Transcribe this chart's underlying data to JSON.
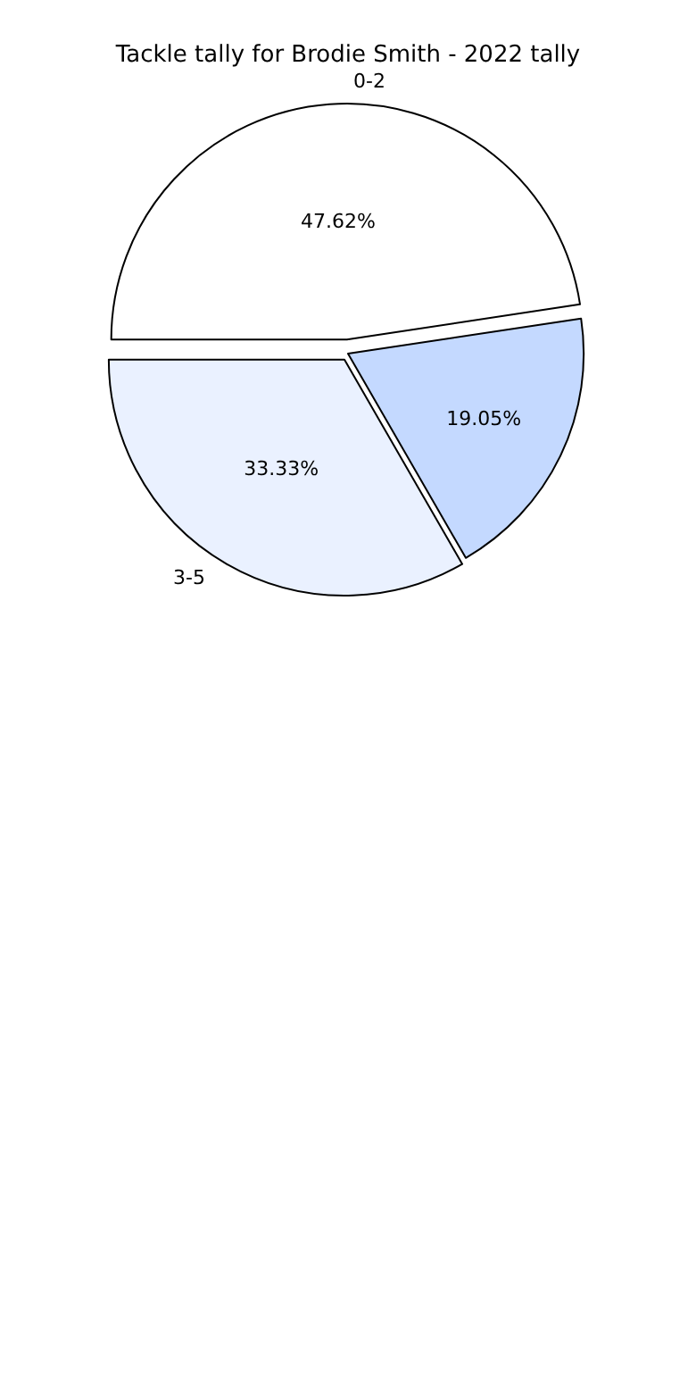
{
  "chart_data": {
    "type": "pie",
    "title": "Tackle tally for Brodie Smith - 2022 tally",
    "categories": [
      "0-2",
      "3-5",
      null
    ],
    "values": [
      47.62,
      33.33,
      19.05
    ],
    "value_labels": [
      "47.62%",
      "33.33%",
      "19.05%"
    ],
    "colors": [
      "#ffffff",
      "#eaf1ff",
      "#c4d9ff"
    ],
    "legend": false
  }
}
